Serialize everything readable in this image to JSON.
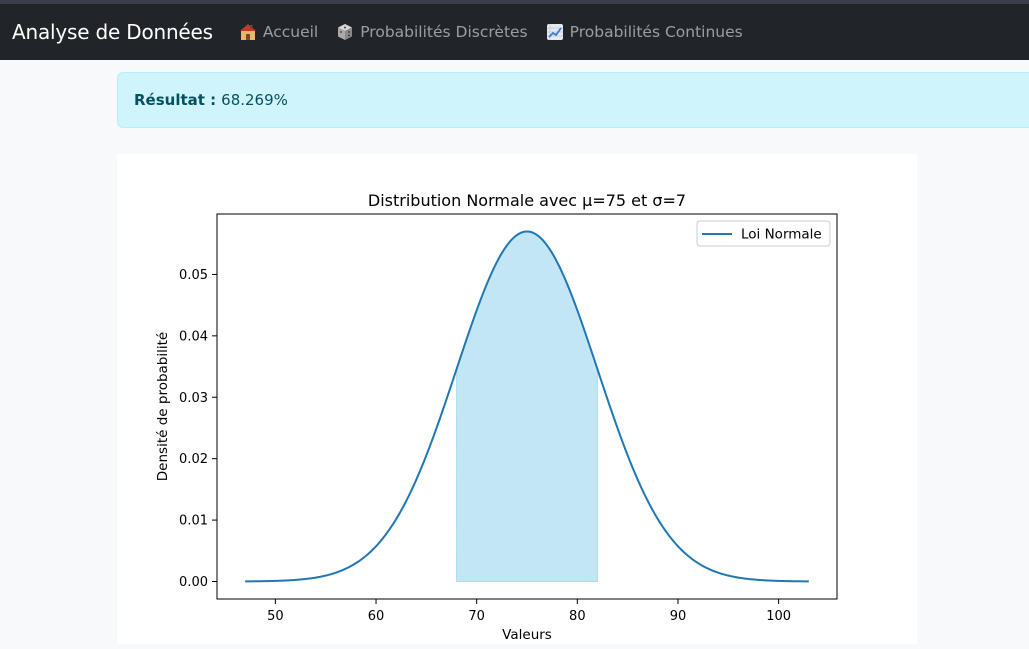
{
  "navbar": {
    "brand": "Analyse de Données",
    "links": [
      {
        "label": "Accueil",
        "icon": "house-icon"
      },
      {
        "label": "Probabilités Discrètes",
        "icon": "die-icon"
      },
      {
        "label": "Probabilités Continues",
        "icon": "chart-increasing-icon"
      }
    ]
  },
  "result": {
    "label": "Résultat :",
    "value": "68.269%"
  },
  "chart_data": {
    "type": "line",
    "title": "Distribution Normale avec μ=75 et σ=7",
    "xlabel": "Valeurs",
    "ylabel": "Densité de probabilité",
    "mu": 75,
    "sigma": 7,
    "x_range": [
      47,
      103
    ],
    "shaded_range": [
      68,
      82
    ],
    "xlim": [
      44.2,
      105.8
    ],
    "ylim": [
      -0.00285,
      0.05984
    ],
    "xticks": [
      50,
      60,
      70,
      80,
      90,
      100
    ],
    "xtick_labels": [
      "50",
      "60",
      "70",
      "80",
      "90",
      "100"
    ],
    "yticks": [
      0.0,
      0.01,
      0.02,
      0.03,
      0.04,
      0.05
    ],
    "ytick_labels": [
      "0.00",
      "0.01",
      "0.02",
      "0.03",
      "0.04",
      "0.05"
    ],
    "series": [
      {
        "name": "Loi Normale",
        "color": "#1f77b4"
      }
    ],
    "fill_color": "#87ceeb",
    "legend_position": "upper right",
    "grid": false
  }
}
